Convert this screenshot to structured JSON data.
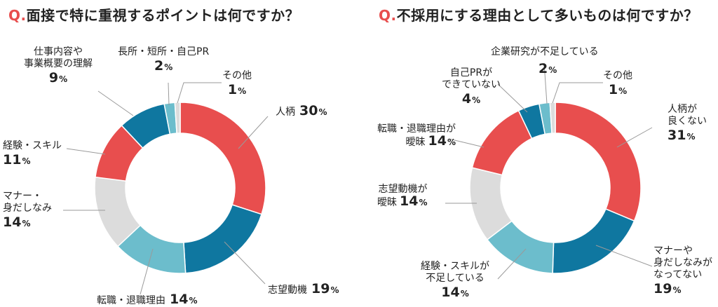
{
  "chart_data": [
    {
      "type": "pie",
      "q_mark": "Q.",
      "title": "面接で特に重視するポイントは何ですか？",
      "pct_unit": "%",
      "slices": [
        {
          "label": "人柄",
          "value": 30,
          "color": "#e84e4e"
        },
        {
          "label": "志望動機",
          "value": 19,
          "color": "#0f77a0"
        },
        {
          "label": "転職・退職理由",
          "value": 14,
          "color": "#6cbdcc"
        },
        {
          "label": "マナー・\n身だしなみ",
          "value": 14,
          "color": "#dcdcdc"
        },
        {
          "label": "経験・スキル",
          "value": 11,
          "color": "#e84e4e"
        },
        {
          "label": "仕事内容や\n事業概要の理解",
          "value": 9,
          "color": "#0f77a0"
        },
        {
          "label": "長所・短所・自己PR",
          "value": 2,
          "color": "#6cbdcc"
        },
        {
          "label": "その他",
          "value": 1,
          "color": "#dcdcdc"
        }
      ]
    },
    {
      "type": "pie",
      "q_mark": "Q.",
      "title": "不採用にする理由として多いものは何ですか？",
      "pct_unit": "%",
      "slices": [
        {
          "label": "人柄が\n良くない",
          "value": 31,
          "color": "#e84e4e"
        },
        {
          "label": "マナーや\n身だしなみが\nなってない",
          "value": 19,
          "color": "#0f77a0"
        },
        {
          "label": "経験・スキルが\n不足している",
          "value": 14,
          "color": "#6cbdcc"
        },
        {
          "label": "志望動機が\n曖昧",
          "value": 14,
          "color": "#dcdcdc"
        },
        {
          "label": "転職・退職理由が\n曖昧",
          "value": 14,
          "color": "#e84e4e"
        },
        {
          "label": "自己PRが\nできていない",
          "value": 4,
          "color": "#0f77a0"
        },
        {
          "label": "企業研究が不足している",
          "value": 2,
          "color": "#6cbdcc"
        },
        {
          "label": "その他",
          "value": 1,
          "color": "#dcdcdc"
        }
      ]
    }
  ]
}
